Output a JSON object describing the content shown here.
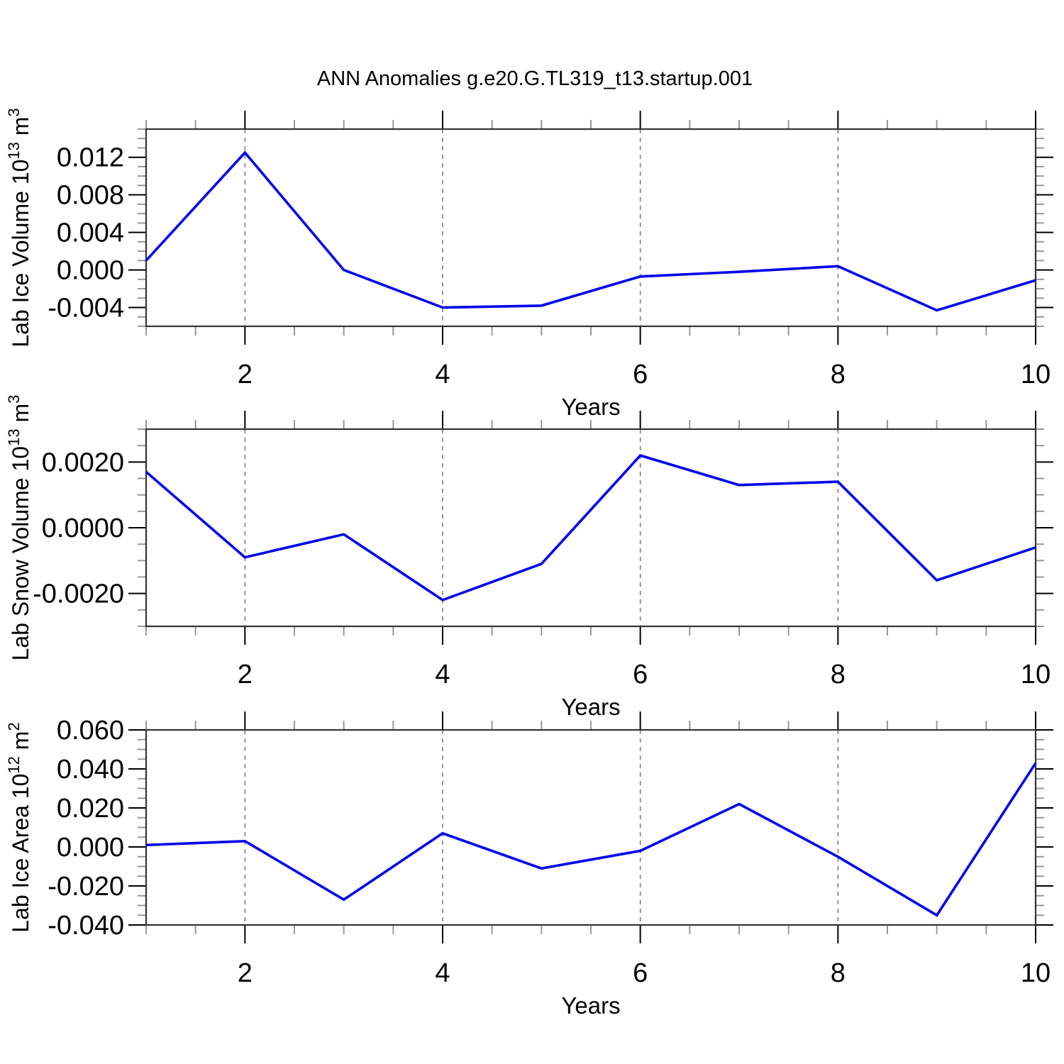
{
  "title": "ANN Anomalies g.e20.G.TL319_t13.startup.001",
  "colors": {
    "line": "#0000ee",
    "frame": "#333333",
    "major_tick": "#000000",
    "minor_tick": "#999999",
    "gridline": "#777777",
    "text": "#000000"
  },
  "chart_data": [
    {
      "type": "line",
      "series_name": "Lab Ice Volume anomaly",
      "ylabel": "Lab Ice Volume 10^13 m^3",
      "ylabel_parts": [
        {
          "t": "Lab Ice Volume 10",
          "sup": false
        },
        {
          "t": "13",
          "sup": true
        },
        {
          "t": " m",
          "sup": false
        },
        {
          "t": "3",
          "sup": true
        }
      ],
      "xlabel": "Years",
      "x": [
        1,
        2,
        3,
        4,
        5,
        6,
        7,
        8,
        9,
        10
      ],
      "values": [
        0.001,
        0.0125,
        0.0,
        -0.004,
        -0.0038,
        -0.0007,
        -0.0002,
        0.0004,
        -0.0043,
        -0.0011
      ],
      "xlim": [
        1,
        10
      ],
      "ylim": [
        -0.006,
        0.015
      ],
      "x_major_ticks": [
        2,
        4,
        6,
        8,
        10
      ],
      "x_tick_labels": [
        "2",
        "4",
        "6",
        "8",
        "10"
      ],
      "x_minor_step": 0.5,
      "y_major_ticks": [
        -0.004,
        0.0,
        0.004,
        0.008,
        0.012
      ],
      "y_tick_labels": [
        "-0.004",
        "0.000",
        "0.004",
        "0.008",
        "0.012"
      ],
      "y_minor_step": 0.001,
      "gridlines_x": [
        2,
        4,
        6,
        8
      ],
      "grid": "vertical-dashed",
      "legend": "none"
    },
    {
      "type": "line",
      "series_name": "Lab Snow Volume anomaly",
      "ylabel": "Lab Snow Volume 10^13 m^3",
      "ylabel_parts": [
        {
          "t": "Lab Snow Volume 10",
          "sup": false
        },
        {
          "t": "13",
          "sup": true
        },
        {
          "t": " m",
          "sup": false
        },
        {
          "t": "3",
          "sup": true
        }
      ],
      "xlabel": "Years",
      "x": [
        1,
        2,
        3,
        4,
        5,
        6,
        7,
        8,
        9,
        10
      ],
      "values": [
        0.0017,
        -0.0009,
        -0.0002,
        -0.0022,
        -0.0011,
        0.0022,
        0.0013,
        0.0014,
        -0.0016,
        -0.0006
      ],
      "xlim": [
        1,
        10
      ],
      "ylim": [
        -0.003,
        0.003
      ],
      "x_major_ticks": [
        2,
        4,
        6,
        8,
        10
      ],
      "x_tick_labels": [
        "2",
        "4",
        "6",
        "8",
        "10"
      ],
      "x_minor_step": 0.5,
      "y_major_ticks": [
        -0.002,
        0.0,
        0.002
      ],
      "y_tick_labels": [
        "-0.0020",
        "0.0000",
        "0.0020"
      ],
      "y_minor_step": 0.0005,
      "gridlines_x": [
        2,
        4,
        6,
        8
      ],
      "grid": "vertical-dashed",
      "legend": "none"
    },
    {
      "type": "line",
      "series_name": "Lab Ice Area anomaly",
      "ylabel": "Lab Ice Area 10^12 m^2",
      "ylabel_parts": [
        {
          "t": "Lab Ice Area 10",
          "sup": false
        },
        {
          "t": "12",
          "sup": true
        },
        {
          "t": " m",
          "sup": false
        },
        {
          "t": "2",
          "sup": true
        }
      ],
      "xlabel": "Years",
      "x": [
        1,
        2,
        3,
        4,
        5,
        6,
        7,
        8,
        9,
        10
      ],
      "values": [
        0.001,
        0.003,
        -0.027,
        0.007,
        -0.011,
        -0.002,
        0.022,
        -0.005,
        -0.035,
        0.043
      ],
      "xlim": [
        1,
        10
      ],
      "ylim": [
        -0.04,
        0.06
      ],
      "x_major_ticks": [
        2,
        4,
        6,
        8,
        10
      ],
      "x_tick_labels": [
        "2",
        "4",
        "6",
        "8",
        "10"
      ],
      "x_minor_step": 0.5,
      "y_major_ticks": [
        -0.04,
        -0.02,
        0.0,
        0.02,
        0.04,
        0.06
      ],
      "y_tick_labels": [
        "-0.040",
        "-0.020",
        "0.000",
        "0.020",
        "0.040",
        "0.060"
      ],
      "y_minor_step": 0.005,
      "gridlines_x": [
        2,
        4,
        6,
        8
      ],
      "grid": "vertical-dashed",
      "legend": "none"
    }
  ]
}
